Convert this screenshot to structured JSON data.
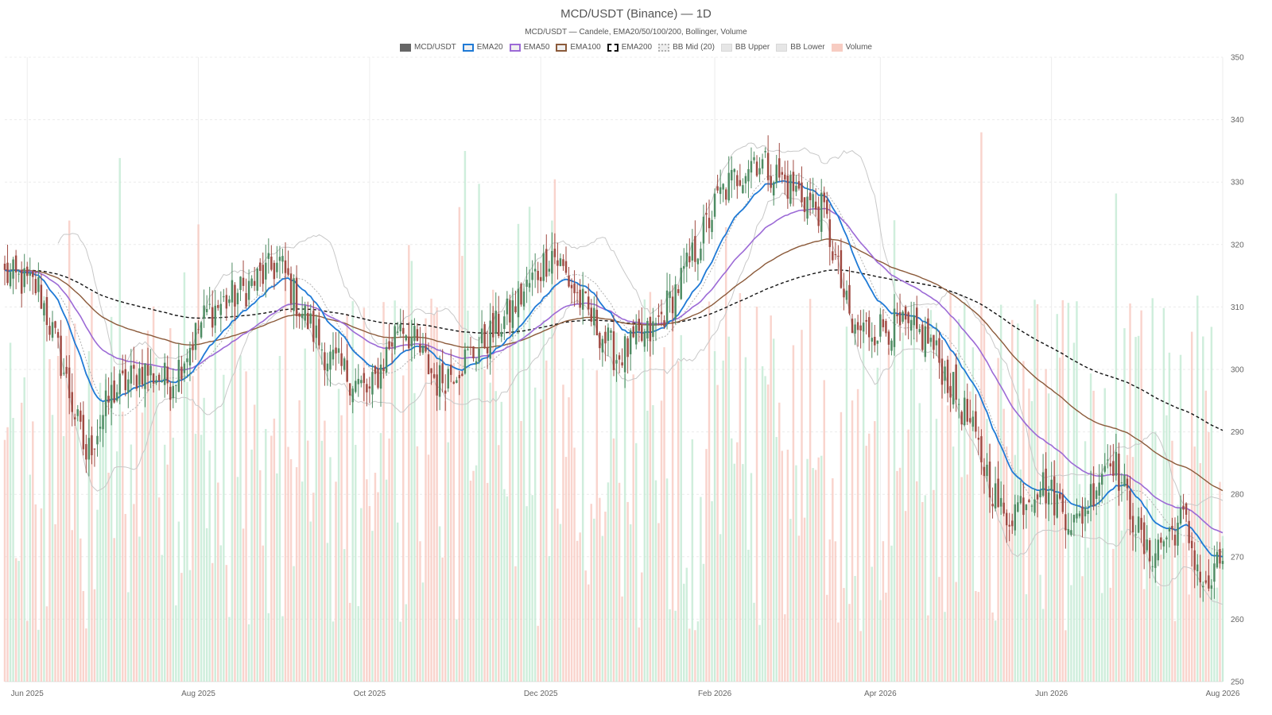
{
  "chart_data": {
    "type": "candlestick",
    "title": "MCD/USDT (Binance) — 1D",
    "subtitle": "MCD/USDT — Candele, EMA20/50/100/200, Bollinger, Volume",
    "legend": [
      {
        "key": "candles",
        "label": "MCD/USDT",
        "color": "#555555",
        "style": "fill"
      },
      {
        "key": "ema20",
        "label": "EMA20",
        "color": "#1f7ad6",
        "style": "line"
      },
      {
        "key": "ema50",
        "label": "EMA50",
        "color": "#9c6ad6",
        "style": "line"
      },
      {
        "key": "ema100",
        "label": "EMA100",
        "color": "#8b5a3a",
        "style": "line"
      },
      {
        "key": "ema200",
        "label": "EMA200",
        "color": "#111111",
        "style": "dashed"
      },
      {
        "key": "bb_mid",
        "label": "BB Mid (20)",
        "color": "#b0b0b0",
        "style": "dotted"
      },
      {
        "key": "bb_upper",
        "label": "BB Upper",
        "color": "#c8c8c8",
        "style": "line"
      },
      {
        "key": "bb_lower",
        "label": "BB Lower",
        "color": "#c8c8c8",
        "style": "line"
      },
      {
        "key": "volume",
        "label": "Volume",
        "color": "#f4b6a8",
        "style": "fill"
      }
    ],
    "x_ticks": [
      "Jun 2025",
      "Aug 2025",
      "Oct 2025",
      "Dec 2025",
      "Feb 2026",
      "Apr 2026",
      "Jun 2026",
      "Aug 2026"
    ],
    "y_ticks": [
      250,
      260,
      270,
      280,
      290,
      300,
      310,
      320,
      330,
      340,
      350
    ],
    "ylim": [
      250,
      350
    ],
    "grid": true,
    "colors": {
      "up": "#4e8c63",
      "down": "#a04a42",
      "vol_up": "#bfe8d0",
      "vol_down": "#f7c6bc"
    },
    "close_anchors": [
      {
        "date": "2025-05-25",
        "close": 315
      },
      {
        "date": "2025-06-05",
        "close": 313
      },
      {
        "date": "2025-06-12",
        "close": 303
      },
      {
        "date": "2025-06-22",
        "close": 286
      },
      {
        "date": "2025-07-01",
        "close": 296
      },
      {
        "date": "2025-07-12",
        "close": 300
      },
      {
        "date": "2025-07-22",
        "close": 298
      },
      {
        "date": "2025-08-04",
        "close": 309
      },
      {
        "date": "2025-08-18",
        "close": 313
      },
      {
        "date": "2025-08-30",
        "close": 317
      },
      {
        "date": "2025-09-06",
        "close": 310
      },
      {
        "date": "2025-09-16",
        "close": 302
      },
      {
        "date": "2025-10-01",
        "close": 296
      },
      {
        "date": "2025-10-12",
        "close": 308
      },
      {
        "date": "2025-10-25",
        "close": 298
      },
      {
        "date": "2025-11-08",
        "close": 303
      },
      {
        "date": "2025-11-20",
        "close": 309
      },
      {
        "date": "2025-12-05",
        "close": 319
      },
      {
        "date": "2025-12-15",
        "close": 311
      },
      {
        "date": "2025-12-28",
        "close": 302
      },
      {
        "date": "2026-01-10",
        "close": 306
      },
      {
        "date": "2026-01-22",
        "close": 316
      },
      {
        "date": "2026-02-03",
        "close": 328
      },
      {
        "date": "2026-02-15",
        "close": 334
      },
      {
        "date": "2026-02-26",
        "close": 330
      },
      {
        "date": "2026-03-12",
        "close": 325
      },
      {
        "date": "2026-03-22",
        "close": 306
      },
      {
        "date": "2026-04-05",
        "close": 307
      },
      {
        "date": "2026-04-18",
        "close": 305
      },
      {
        "date": "2026-05-02",
        "close": 292
      },
      {
        "date": "2026-05-15",
        "close": 276
      },
      {
        "date": "2026-05-28",
        "close": 282
      },
      {
        "date": "2026-06-10",
        "close": 275
      },
      {
        "date": "2026-06-22",
        "close": 287
      },
      {
        "date": "2026-07-05",
        "close": 270
      },
      {
        "date": "2026-07-18",
        "close": 276
      },
      {
        "date": "2026-07-26",
        "close": 264
      },
      {
        "date": "2026-08-01",
        "close": 270
      }
    ]
  }
}
